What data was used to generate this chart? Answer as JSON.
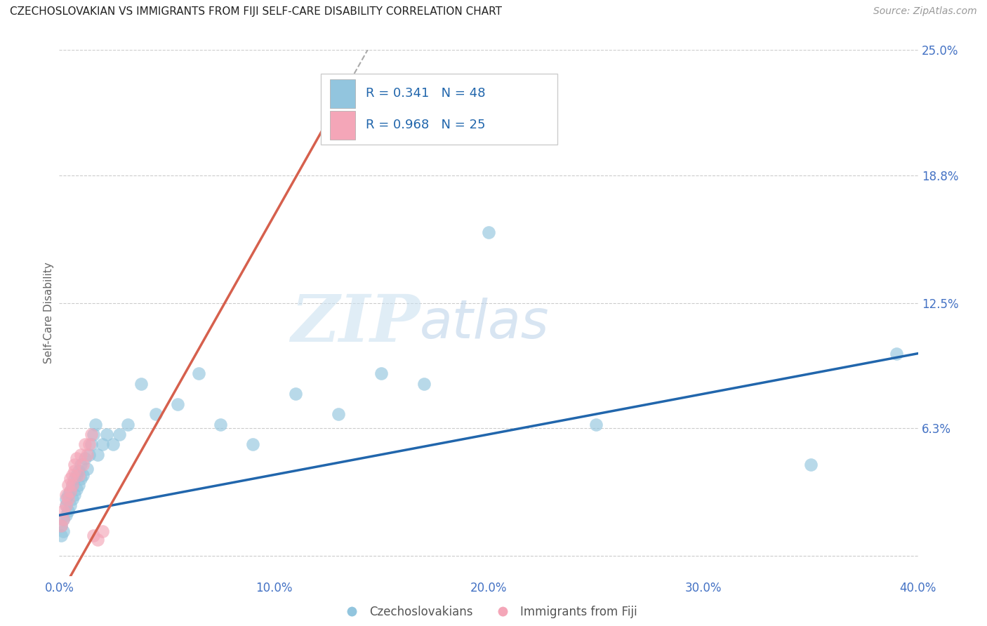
{
  "title": "CZECHOSLOVAKIAN VS IMMIGRANTS FROM FIJI SELF-CARE DISABILITY CORRELATION CHART",
  "source": "Source: ZipAtlas.com",
  "ylabel": "Self-Care Disability",
  "xlim": [
    0,
    0.4
  ],
  "ylim": [
    -0.01,
    0.25
  ],
  "yticks_right": [
    0.0,
    0.063,
    0.125,
    0.188,
    0.25
  ],
  "ytick_labels_right": [
    "",
    "6.3%",
    "12.5%",
    "18.8%",
    "25.0%"
  ],
  "xticks": [
    0.0,
    0.1,
    0.2,
    0.3,
    0.4
  ],
  "xtick_labels": [
    "0.0%",
    "10.0%",
    "20.0%",
    "30.0%",
    "40.0%"
  ],
  "blue_R": 0.341,
  "blue_N": 48,
  "pink_R": 0.968,
  "pink_N": 25,
  "blue_color": "#92c5de",
  "pink_color": "#f4a6b8",
  "blue_line_color": "#2166ac",
  "pink_line_color": "#d6604d",
  "watermark_zip": "ZIP",
  "watermark_atlas": "atlas",
  "blue_scatter_x": [
    0.001,
    0.001,
    0.002,
    0.002,
    0.003,
    0.003,
    0.003,
    0.004,
    0.004,
    0.005,
    0.005,
    0.006,
    0.006,
    0.007,
    0.007,
    0.008,
    0.008,
    0.009,
    0.009,
    0.01,
    0.01,
    0.011,
    0.012,
    0.013,
    0.014,
    0.015,
    0.016,
    0.017,
    0.018,
    0.02,
    0.022,
    0.025,
    0.028,
    0.032,
    0.038,
    0.045,
    0.055,
    0.065,
    0.075,
    0.09,
    0.11,
    0.13,
    0.15,
    0.17,
    0.2,
    0.25,
    0.35,
    0.39
  ],
  "blue_scatter_y": [
    0.01,
    0.015,
    0.012,
    0.018,
    0.02,
    0.025,
    0.028,
    0.022,
    0.03,
    0.025,
    0.032,
    0.028,
    0.035,
    0.03,
    0.038,
    0.033,
    0.04,
    0.035,
    0.042,
    0.038,
    0.045,
    0.04,
    0.048,
    0.043,
    0.05,
    0.055,
    0.06,
    0.065,
    0.05,
    0.055,
    0.06,
    0.055,
    0.06,
    0.065,
    0.085,
    0.07,
    0.075,
    0.09,
    0.065,
    0.055,
    0.08,
    0.07,
    0.09,
    0.085,
    0.16,
    0.065,
    0.045,
    0.1
  ],
  "pink_scatter_x": [
    0.001,
    0.002,
    0.002,
    0.003,
    0.003,
    0.004,
    0.004,
    0.005,
    0.005,
    0.006,
    0.006,
    0.007,
    0.007,
    0.008,
    0.009,
    0.01,
    0.011,
    0.012,
    0.013,
    0.014,
    0.015,
    0.016,
    0.018,
    0.02,
    0.125
  ],
  "pink_scatter_y": [
    0.015,
    0.018,
    0.022,
    0.025,
    0.03,
    0.028,
    0.035,
    0.032,
    0.038,
    0.035,
    0.04,
    0.042,
    0.045,
    0.048,
    0.04,
    0.05,
    0.045,
    0.055,
    0.05,
    0.055,
    0.06,
    0.01,
    0.008,
    0.012,
    0.215
  ],
  "legend_blue_label": "R = 0.341   N = 48",
  "legend_pink_label": "R = 0.968   N = 25",
  "bottom_label1": "Czechoslovakians",
  "bottom_label2": "Immigrants from Fiji"
}
